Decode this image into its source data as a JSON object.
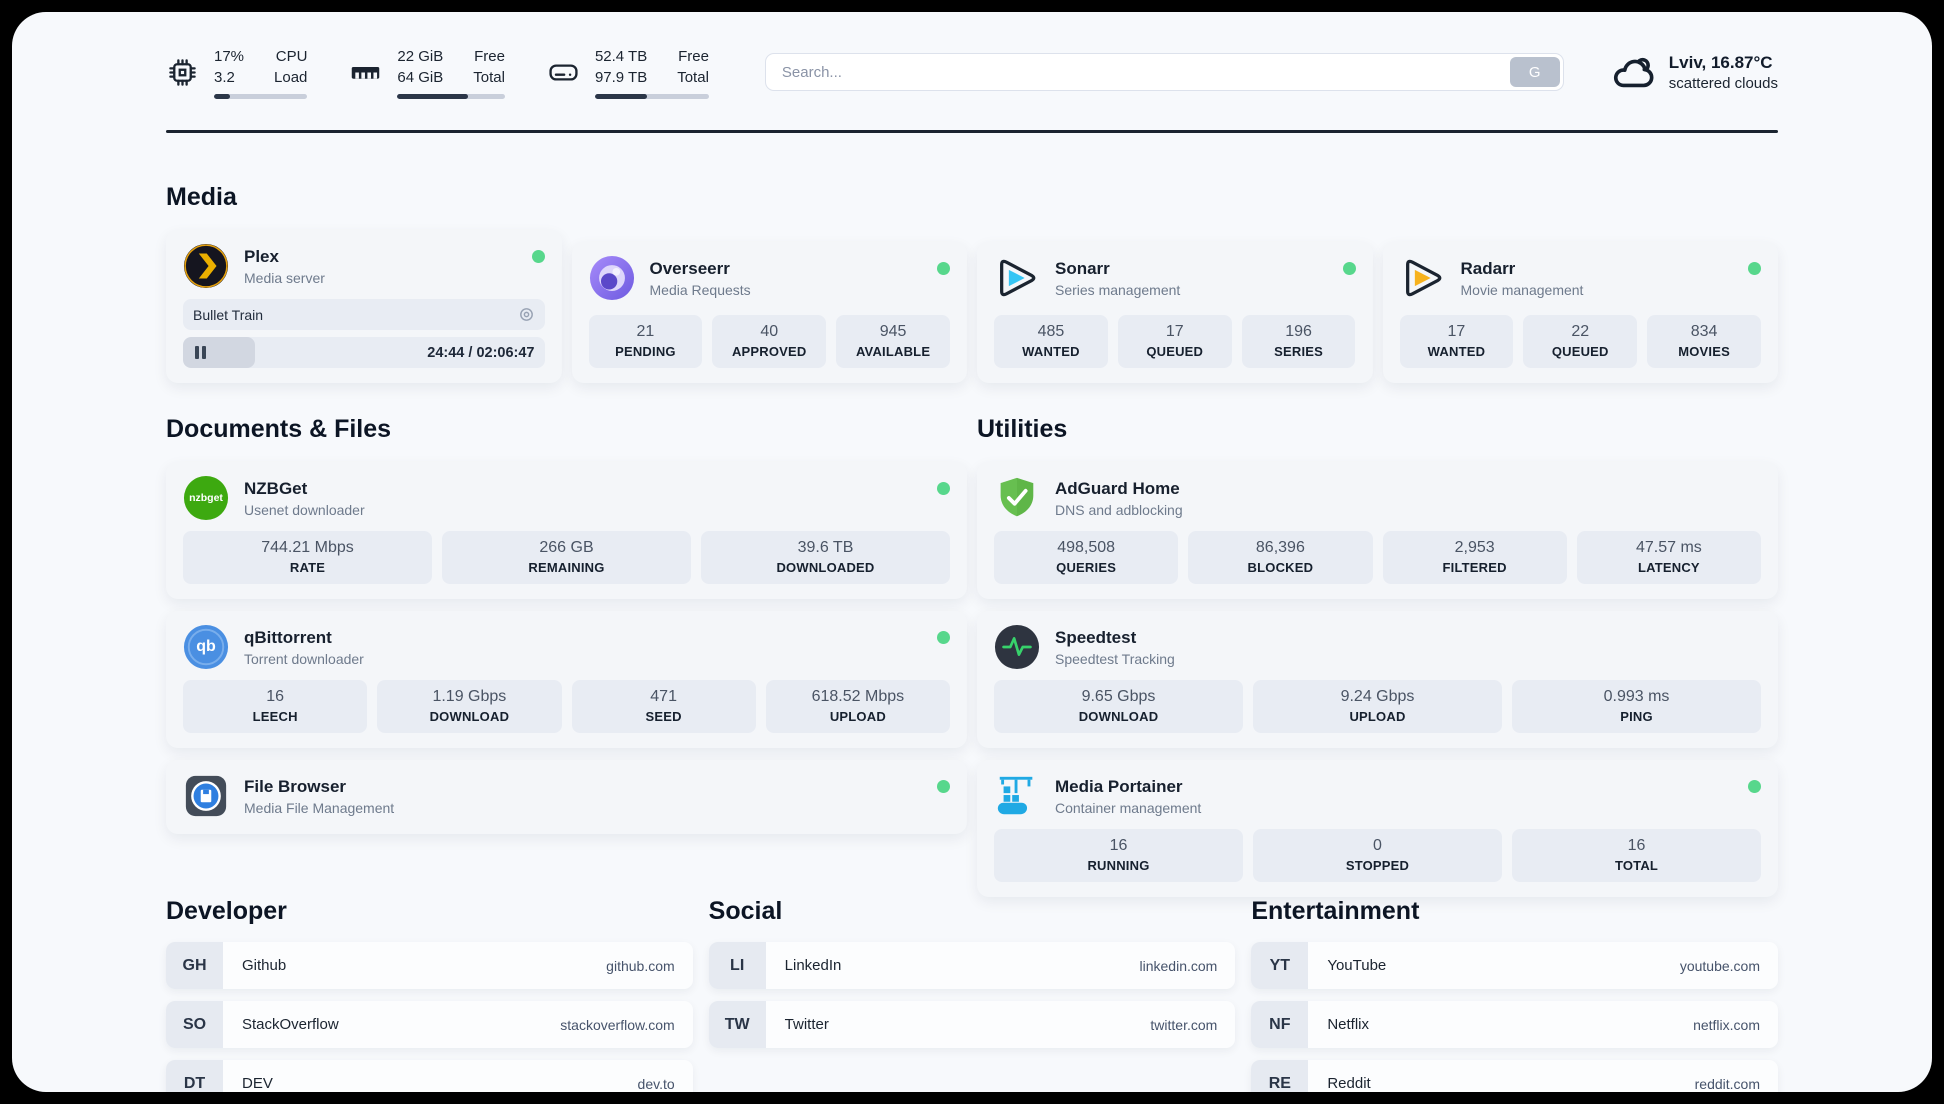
{
  "colors": {
    "status_online": "#57d78c",
    "divider": "#1b2430",
    "page_bg": "#f7f9fc",
    "stat_box_bg": "#e8ecf3"
  },
  "header": {
    "system": [
      {
        "name": "cpu",
        "value_top": "17%",
        "value_bottom": "3.2",
        "label_top": "CPU",
        "label_bottom": "Load",
        "progress": 17
      },
      {
        "name": "memory",
        "value_top": "22 GiB",
        "value_bottom": "64 GiB",
        "label_top": "Free",
        "label_bottom": "Total",
        "progress": 66
      },
      {
        "name": "disk",
        "value_top": "52.4 TB",
        "value_bottom": "97.9 TB",
        "label_top": "Free",
        "label_bottom": "Total",
        "progress": 46
      }
    ],
    "search": {
      "placeholder": "Search...",
      "button_label": "G"
    },
    "weather": {
      "location": "Lviv, 16.87°C",
      "condition": "scattered clouds"
    }
  },
  "media": {
    "title": "Media",
    "plex": {
      "name": "Plex",
      "desc": "Media server",
      "now_playing": "Bullet Train",
      "time": "24:44 / 02:06:47",
      "progress": 20
    },
    "overseerr": {
      "name": "Overseerr",
      "desc": "Media Requests",
      "stats": [
        {
          "value": "21",
          "label": "PENDING"
        },
        {
          "value": "40",
          "label": "APPROVED"
        },
        {
          "value": "945",
          "label": "AVAILABLE"
        }
      ]
    },
    "sonarr": {
      "name": "Sonarr",
      "desc": "Series management",
      "stats": [
        {
          "value": "485",
          "label": "WANTED"
        },
        {
          "value": "17",
          "label": "QUEUED"
        },
        {
          "value": "196",
          "label": "SERIES"
        }
      ]
    },
    "radarr": {
      "name": "Radarr",
      "desc": "Movie management",
      "stats": [
        {
          "value": "17",
          "label": "WANTED"
        },
        {
          "value": "22",
          "label": "QUEUED"
        },
        {
          "value": "834",
          "label": "MOVIES"
        }
      ]
    }
  },
  "documents": {
    "title": "Documents & Files",
    "nzbget": {
      "name": "NZBGet",
      "desc": "Usenet downloader",
      "icon_text": "nzbget",
      "stats": [
        {
          "value": "744.21 Mbps",
          "label": "RATE"
        },
        {
          "value": "266 GB",
          "label": "REMAINING"
        },
        {
          "value": "39.6 TB",
          "label": "DOWNLOADED"
        }
      ]
    },
    "qbittorrent": {
      "name": "qBittorrent",
      "desc": "Torrent downloader",
      "icon_text": "qb",
      "stats": [
        {
          "value": "16",
          "label": "LEECH"
        },
        {
          "value": "1.19 Gbps",
          "label": "DOWNLOAD"
        },
        {
          "value": "471",
          "label": "SEED"
        },
        {
          "value": "618.52 Mbps",
          "label": "UPLOAD"
        }
      ]
    },
    "filebrowser": {
      "name": "File Browser",
      "desc": "Media File Management"
    }
  },
  "utilities": {
    "title": "Utilities",
    "adguard": {
      "name": "AdGuard Home",
      "desc": "DNS and adblocking",
      "stats": [
        {
          "value": "498,508",
          "label": "QUERIES"
        },
        {
          "value": "86,396",
          "label": "BLOCKED"
        },
        {
          "value": "2,953",
          "label": "FILTERED"
        },
        {
          "value": "47.57 ms",
          "label": "LATENCY"
        }
      ]
    },
    "speedtest": {
      "name": "Speedtest",
      "desc": "Speedtest Tracking",
      "stats": [
        {
          "value": "9.65 Gbps",
          "label": "DOWNLOAD"
        },
        {
          "value": "9.24 Gbps",
          "label": "UPLOAD"
        },
        {
          "value": "0.993 ms",
          "label": "PING"
        }
      ]
    },
    "portainer": {
      "name": "Media Portainer",
      "desc": "Container management",
      "stats": [
        {
          "value": "16",
          "label": "RUNNING"
        },
        {
          "value": "0",
          "label": "STOPPED"
        },
        {
          "value": "16",
          "label": "TOTAL"
        }
      ]
    }
  },
  "links": {
    "developer": {
      "title": "Developer",
      "items": [
        {
          "badge": "GH",
          "name": "Github",
          "url": "github.com"
        },
        {
          "badge": "SO",
          "name": "StackOverflow",
          "url": "stackoverflow.com"
        },
        {
          "badge": "DT",
          "name": "DEV",
          "url": "dev.to"
        }
      ]
    },
    "social": {
      "title": "Social",
      "items": [
        {
          "badge": "LI",
          "name": "LinkedIn",
          "url": "linkedin.com"
        },
        {
          "badge": "TW",
          "name": "Twitter",
          "url": "twitter.com"
        }
      ]
    },
    "entertainment": {
      "title": "Entertainment",
      "items": [
        {
          "badge": "YT",
          "name": "YouTube",
          "url": "youtube.com"
        },
        {
          "badge": "NF",
          "name": "Netflix",
          "url": "netflix.com"
        },
        {
          "badge": "RE",
          "name": "Reddit",
          "url": "reddit.com"
        }
      ]
    }
  }
}
